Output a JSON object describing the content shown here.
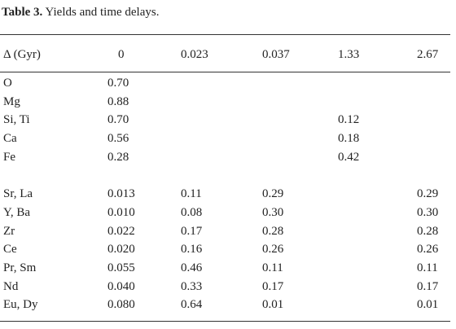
{
  "title": {
    "label": "Table 3.",
    "text": "Yields and time delays."
  },
  "table": {
    "header": [
      "Δ (Gyr)",
      "0",
      "0.023",
      "0.037",
      "1.33",
      "2.67"
    ],
    "groups": [
      [
        [
          "O",
          "0.70",
          null,
          null,
          null,
          null
        ],
        [
          "Mg",
          "0.88",
          null,
          null,
          null,
          null
        ],
        [
          "Si, Ti",
          "0.70",
          null,
          null,
          "0.12",
          null
        ],
        [
          "Ca",
          "0.56",
          null,
          null,
          "0.18",
          null
        ],
        [
          "Fe",
          "0.28",
          null,
          null,
          "0.42",
          null
        ]
      ],
      [
        [
          "Sr, La",
          "0.013",
          "0.11",
          "0.29",
          null,
          "0.29"
        ],
        [
          "Y, Ba",
          "0.010",
          "0.08",
          "0.30",
          null,
          "0.30"
        ],
        [
          "Zr",
          "0.022",
          "0.17",
          "0.28",
          null,
          "0.28"
        ],
        [
          "Ce",
          "0.020",
          "0.16",
          "0.26",
          null,
          "0.26"
        ],
        [
          "Pr, Sm",
          "0.055",
          "0.46",
          "0.11",
          null,
          "0.11"
        ],
        [
          "Nd",
          "0.040",
          "0.33",
          "0.17",
          null,
          "0.17"
        ],
        [
          "Eu, Dy",
          "0.080",
          "0.64",
          "0.01",
          null,
          "0.01"
        ]
      ]
    ]
  }
}
